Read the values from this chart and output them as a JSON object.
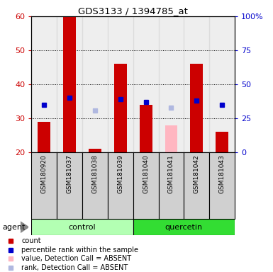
{
  "title": "GDS3133 / 1394785_at",
  "samples": [
    "GSM180920",
    "GSM181037",
    "GSM181038",
    "GSM181039",
    "GSM181040",
    "GSM181041",
    "GSM181042",
    "GSM181043"
  ],
  "bar_values": [
    29,
    60,
    21,
    46,
    34,
    null,
    46,
    26
  ],
  "bar_absent_values": [
    null,
    null,
    null,
    null,
    null,
    28,
    null,
    null
  ],
  "rank_values": [
    35,
    40,
    null,
    39,
    37,
    null,
    38,
    35
  ],
  "rank_absent_values": [
    null,
    null,
    31,
    null,
    null,
    33,
    null,
    null
  ],
  "ylim_left": [
    20,
    60
  ],
  "ylim_right": [
    0,
    100
  ],
  "yticks_left": [
    20,
    30,
    40,
    50,
    60
  ],
  "yticks_right": [
    0,
    25,
    50,
    75,
    100
  ],
  "ytick_labels_right": [
    "0",
    "25",
    "50",
    "75",
    "100%"
  ],
  "left_color": "#cc0000",
  "right_color": "#0000cc",
  "bar_color": "#cc0000",
  "rank_color": "#0000cc",
  "absent_bar_color": "#ffb6c1",
  "absent_rank_color": "#b0b8e0",
  "control_color": "#b3ffb3",
  "quercetin_color": "#33dd33",
  "col_bg_color": "#d0d0d0",
  "legend": [
    {
      "label": "count",
      "color": "#cc0000"
    },
    {
      "label": "percentile rank within the sample",
      "color": "#0000cc"
    },
    {
      "label": "value, Detection Call = ABSENT",
      "color": "#ffb6c1"
    },
    {
      "label": "rank, Detection Call = ABSENT",
      "color": "#b0b8e0"
    }
  ]
}
